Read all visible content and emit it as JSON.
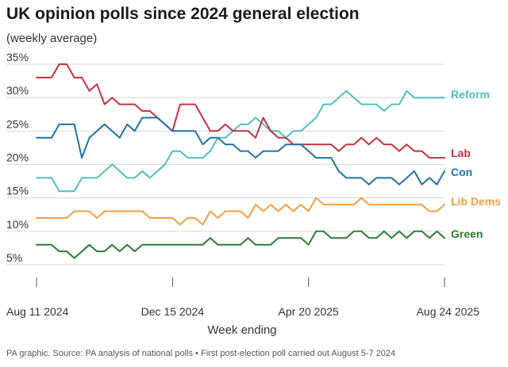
{
  "chart_data": {
    "type": "line",
    "title": "UK opinion polls since 2024 general election",
    "subtitle": "(weekly average)",
    "xlabel": "Week ending",
    "ylabel": "",
    "ylim": [
      0,
      35
    ],
    "yticks": [
      {
        "value": 5,
        "label": "5%"
      },
      {
        "value": 10,
        "label": "10%"
      },
      {
        "value": 15,
        "label": "15%"
      },
      {
        "value": 20,
        "label": "20%"
      },
      {
        "value": 25,
        "label": "25%"
      },
      {
        "value": 30,
        "label": "30%"
      },
      {
        "value": 35,
        "label": "35%"
      }
    ],
    "n_weeks": 55,
    "xticks": [
      {
        "week": 0,
        "label": "Aug 11 2024"
      },
      {
        "week": 18,
        "label": "Dec 15 2024"
      },
      {
        "week": 36,
        "label": "Apr 20 2025"
      },
      {
        "week": 54,
        "label": "Aug 24 2025"
      }
    ],
    "series": [
      {
        "name": "Reform",
        "color": "#4fbfc3",
        "values": [
          18,
          18,
          18,
          16,
          16,
          16,
          18,
          18,
          18,
          19,
          20,
          19,
          18,
          18,
          19,
          18,
          19,
          20,
          22,
          22,
          21,
          21,
          21,
          22,
          24,
          24,
          25,
          26,
          26,
          27,
          26,
          25,
          25,
          24,
          25,
          25,
          26,
          27,
          29,
          29,
          30,
          31,
          30,
          29,
          29,
          29,
          28,
          29,
          29,
          31,
          30,
          30,
          30,
          30,
          30
        ]
      },
      {
        "name": "Lab",
        "color": "#c8313e",
        "values": [
          33,
          33,
          33,
          35,
          35,
          33,
          33,
          31,
          32,
          29,
          30,
          29,
          29,
          29,
          28,
          28,
          27,
          26,
          25,
          29,
          29,
          29,
          27,
          25,
          25,
          26,
          25,
          25,
          25,
          24,
          27,
          25,
          24,
          24,
          23,
          23,
          23,
          23,
          23,
          23,
          22,
          23,
          23,
          24,
          23,
          24,
          23,
          23,
          22,
          23,
          22,
          22,
          21,
          21,
          21
        ]
      },
      {
        "name": "Con",
        "color": "#2272a6",
        "values": [
          24,
          24,
          24,
          26,
          26,
          26,
          21,
          24,
          25,
          26,
          25,
          24,
          26,
          25,
          27,
          27,
          27,
          26,
          25,
          25,
          25,
          25,
          23,
          24,
          24,
          23,
          23,
          22,
          22,
          21,
          22,
          22,
          22,
          23,
          23,
          23,
          22,
          21,
          21,
          21,
          19,
          18,
          18,
          18,
          17,
          18,
          18,
          18,
          17,
          18,
          19,
          17,
          18,
          17,
          19
        ]
      },
      {
        "name": "Lib Dems",
        "color": "#f0a143",
        "values": [
          12,
          12,
          12,
          12,
          12,
          13,
          13,
          13,
          12,
          13,
          13,
          13,
          13,
          13,
          13,
          12,
          12,
          12,
          12,
          11,
          12,
          12,
          11,
          13,
          12,
          13,
          13,
          13,
          12,
          14,
          13,
          14,
          13,
          14,
          13,
          14,
          13,
          15,
          14,
          14,
          14,
          14,
          14,
          15,
          14,
          14,
          14,
          14,
          14,
          14,
          14,
          14,
          13,
          13,
          14
        ]
      },
      {
        "name": "Green",
        "color": "#2f7d32",
        "values": [
          8,
          8,
          8,
          7,
          7,
          6,
          7,
          8,
          7,
          7,
          8,
          7,
          8,
          7,
          8,
          8,
          8,
          8,
          8,
          8,
          8,
          8,
          8,
          9,
          8,
          8,
          8,
          8,
          9,
          8,
          8,
          8,
          9,
          9,
          9,
          9,
          8,
          10,
          10,
          9,
          9,
          9,
          10,
          10,
          9,
          9,
          10,
          9,
          10,
          9,
          10,
          10,
          9,
          10,
          9
        ]
      }
    ],
    "source": "PA graphic. Source: PA analysis of national polls • First post-election poll carried out August 5-7 2024"
  }
}
